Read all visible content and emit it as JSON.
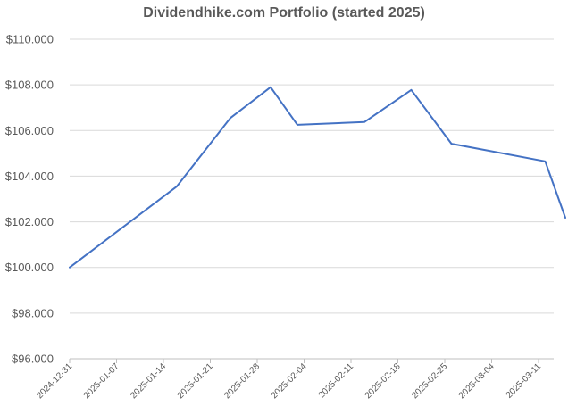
{
  "chart_data": {
    "type": "line",
    "title": "Dividendhike.com Portfolio (started 2025)",
    "xlabel": "",
    "ylabel": "",
    "x_tick_labels": [
      "2024-12-31",
      "2025-01-07",
      "2025-01-14",
      "2025-01-21",
      "2025-01-28",
      "2025-02-04",
      "2025-02-11",
      "2025-02-18",
      "2025-02-25",
      "2025-03-04",
      "2025-03-11"
    ],
    "y_tick_labels": [
      "$96.000",
      "$98.000",
      "$100.000",
      "$102.000",
      "$104.000",
      "$106.000",
      "$108.000",
      "$110.000"
    ],
    "ylim": [
      96000,
      110000
    ],
    "xlim": [
      "2024-12-31",
      "2025-03-15"
    ],
    "grid": true,
    "line_color": "#4472c4",
    "series": [
      {
        "x": [
          "2024-12-31",
          "2025-01-16",
          "2025-01-24",
          "2025-01-30",
          "2025-02-03",
          "2025-02-13",
          "2025-02-20",
          "2025-02-26",
          "2025-03-12",
          "2025-03-15"
        ],
        "values": [
          100000,
          103550,
          106550,
          107900,
          106250,
          106370,
          107780,
          105420,
          104650,
          102180
        ]
      }
    ]
  }
}
